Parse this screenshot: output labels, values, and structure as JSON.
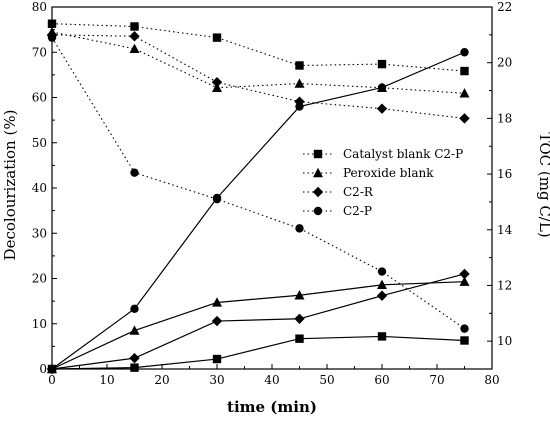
{
  "chart_data": {
    "type": "line",
    "xlabel": "time (min)",
    "ylabel": "Decolourization (%)",
    "y2label": "TOC (mg C/L)",
    "xlim": [
      0,
      80
    ],
    "ylim": [
      0,
      80
    ],
    "y2lim": [
      9,
      22
    ],
    "x_ticks": [
      0,
      10,
      20,
      30,
      40,
      50,
      60,
      70,
      80
    ],
    "y_ticks": [
      0,
      10,
      20,
      30,
      40,
      50,
      60,
      70,
      80
    ],
    "y2_ticks": [
      10,
      12,
      14,
      16,
      18,
      20,
      22
    ],
    "grid": false,
    "legend_position": "right-middle",
    "x": [
      0,
      15,
      30,
      45,
      60,
      75
    ],
    "series": [
      {
        "name": "Catalyst blank C2-P",
        "marker": "square",
        "decolourization": [
          0,
          0.3,
          2.2,
          6.7,
          7.2,
          6.3
        ],
        "toc": [
          21.4,
          21.3,
          20.9,
          19.9,
          19.95,
          19.7
        ]
      },
      {
        "name": "Peroxide blank",
        "marker": "triangle",
        "decolourization": [
          0,
          8.5,
          14.7,
          16.3,
          18.6,
          19.3
        ],
        "toc": [
          21.1,
          20.5,
          19.1,
          19.25,
          19.1,
          18.9
        ]
      },
      {
        "name": "C2-R",
        "marker": "diamond",
        "decolourization": [
          0,
          2.4,
          10.6,
          11.1,
          16.2,
          21.0
        ],
        "toc": [
          21.0,
          20.95,
          19.3,
          18.6,
          18.35,
          18.0
        ]
      },
      {
        "name": "C2-P",
        "marker": "circle",
        "decolourization": [
          0,
          13.3,
          37.8,
          58.0,
          62.2,
          70.0
        ],
        "toc": [
          20.9,
          16.05,
          15.1,
          14.05,
          12.5,
          10.45
        ]
      }
    ]
  }
}
